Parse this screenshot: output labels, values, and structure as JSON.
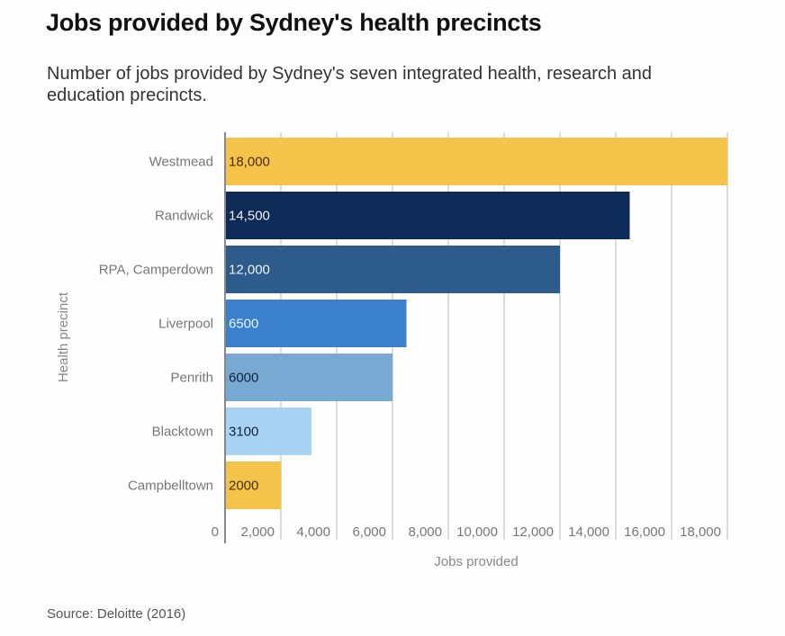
{
  "header": {
    "title": "Jobs provided by Sydney's health precincts",
    "subtitle": "Number of jobs provided by Sydney's seven integrated health, research and education precincts."
  },
  "footer": {
    "source": "Source: Deloitte (2016)"
  },
  "chart_data": {
    "type": "bar",
    "orientation": "horizontal",
    "title": "Jobs provided by Sydney's health precincts",
    "subtitle": "Number of jobs provided by Sydney's seven integrated health, research and education precincts.",
    "xlabel": "Jobs provided",
    "ylabel": "Health precinct",
    "xlim": [
      0,
      18000
    ],
    "grid": true,
    "categories": [
      "Westmead",
      "Randwick",
      "RPA, Camperdown",
      "Liverpool",
      "Penrith",
      "Blacktown",
      "Campbelltown"
    ],
    "values": [
      18000,
      14500,
      12000,
      6500,
      6000,
      3100,
      2000
    ],
    "data_labels": [
      "18,000",
      "14,500",
      "12,000",
      "6500",
      "6000",
      "3100",
      "2000"
    ],
    "bar_colors": [
      "#F4C349",
      "#0D2B56",
      "#2C5B8C",
      "#3A80CC",
      "#78A9D3",
      "#A8D3F2",
      "#F4C349"
    ],
    "label_colors": [
      "#4A2F00",
      "#EAF2FB",
      "#EAF2FB",
      "#EAF2FB",
      "#0D2440",
      "#0D2440",
      "#4A2F00"
    ],
    "x_ticks": [
      0,
      2000,
      4000,
      6000,
      8000,
      10000,
      12000,
      14000,
      16000,
      18000
    ],
    "x_tick_labels": [
      "0",
      "2,000",
      "4,000",
      "6,000",
      "8,000",
      "10,000",
      "12,000",
      "14,000",
      "16,000",
      "18,000"
    ],
    "source": "Source: Deloitte (2016)"
  }
}
